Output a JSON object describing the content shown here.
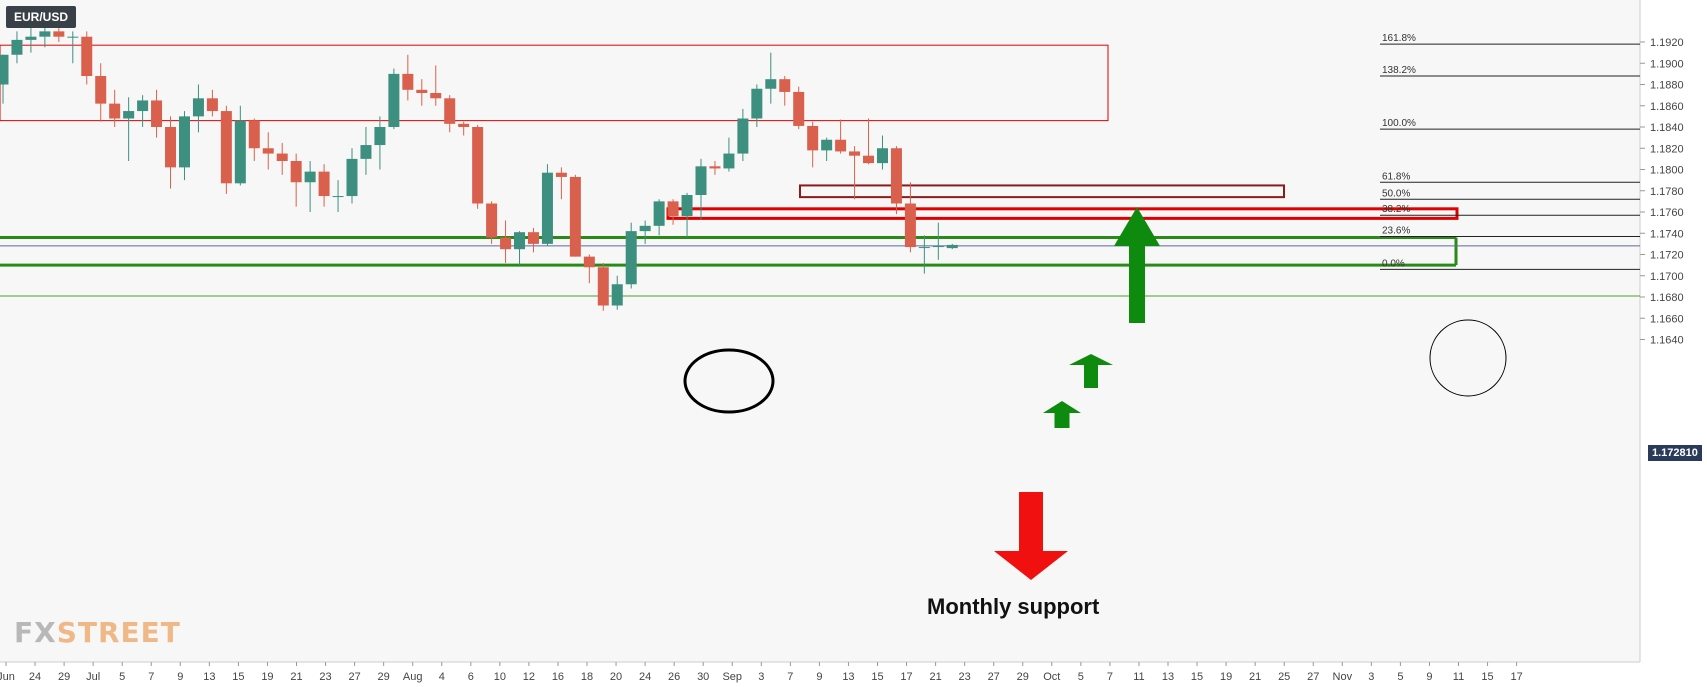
{
  "symbol": "EUR/USD",
  "current_price": "1.172810",
  "annotation": "Monthly support",
  "logo": {
    "left": "FX",
    "right": "STREET"
  },
  "colors": {
    "up": "#3d8f7f",
    "down": "#d9604d",
    "green_zone": "#2a8a18",
    "red_zone": "#e00000",
    "dark_red_zone": "#8b1a1a",
    "arrow_up": "#0e8a0e",
    "arrow_down": "#f01010"
  },
  "chart_data": {
    "type": "candlestick",
    "ylim": [
      1.1625,
      1.1938
    ],
    "y_ticks": [
      "1.1920",
      "1.1900",
      "1.1880",
      "1.1860",
      "1.1840",
      "1.1820",
      "1.1800",
      "1.1780",
      "1.1760",
      "1.1740",
      "1.1720",
      "1.1700",
      "1.1680",
      "1.1660",
      "1.1640"
    ],
    "x_ticks": [
      "Jun",
      "24",
      "29",
      "Jul",
      "5",
      "7",
      "9",
      "13",
      "15",
      "19",
      "21",
      "23",
      "27",
      "29",
      "Aug",
      "4",
      "6",
      "10",
      "12",
      "16",
      "18",
      "20",
      "24",
      "26",
      "30",
      "Sep",
      "3",
      "7",
      "9",
      "13",
      "15",
      "17",
      "21",
      "23",
      "27",
      "29",
      "Oct",
      "5",
      "7",
      "11",
      "13",
      "15",
      "19",
      "21",
      "25",
      "27",
      "Nov",
      "3",
      "5",
      "9",
      "11",
      "15",
      "17"
    ],
    "candles": [
      [
        1.188,
        1.1908,
        1.1862,
        1.1908
      ],
      [
        1.1908,
        1.193,
        1.19,
        1.1922
      ],
      [
        1.1922,
        1.1935,
        1.191,
        1.1925
      ],
      [
        1.1925,
        1.1935,
        1.1915,
        1.193
      ],
      [
        1.193,
        1.1935,
        1.192,
        1.1925
      ],
      [
        1.1925,
        1.193,
        1.19,
        1.1925
      ],
      [
        1.1925,
        1.193,
        1.188,
        1.1888
      ],
      [
        1.1888,
        1.19,
        1.1845,
        1.1862
      ],
      [
        1.1862,
        1.1875,
        1.184,
        1.1848
      ],
      [
        1.1848,
        1.1868,
        1.1808,
        1.1855
      ],
      [
        1.1855,
        1.187,
        1.184,
        1.1865
      ],
      [
        1.1865,
        1.1875,
        1.183,
        1.184
      ],
      [
        1.184,
        1.185,
        1.1782,
        1.1802
      ],
      [
        1.1802,
        1.1855,
        1.179,
        1.185
      ],
      [
        1.185,
        1.188,
        1.1835,
        1.1867
      ],
      [
        1.1867,
        1.1875,
        1.185,
        1.1855
      ],
      [
        1.1855,
        1.186,
        1.1777,
        1.1787
      ],
      [
        1.1787,
        1.186,
        1.1785,
        1.1846
      ],
      [
        1.1846,
        1.1848,
        1.1808,
        1.182
      ],
      [
        1.182,
        1.1835,
        1.18,
        1.1815
      ],
      [
        1.1815,
        1.1825,
        1.1795,
        1.1808
      ],
      [
        1.1808,
        1.1815,
        1.1765,
        1.1788
      ],
      [
        1.1788,
        1.1808,
        1.176,
        1.1798
      ],
      [
        1.1798,
        1.1805,
        1.1765,
        1.1775
      ],
      [
        1.1775,
        1.179,
        1.176,
        1.1775
      ],
      [
        1.1775,
        1.182,
        1.1768,
        1.181
      ],
      [
        1.181,
        1.184,
        1.1795,
        1.1823
      ],
      [
        1.1823,
        1.185,
        1.18,
        1.184
      ],
      [
        1.184,
        1.1895,
        1.1838,
        1.189
      ],
      [
        1.189,
        1.1908,
        1.1865,
        1.1875
      ],
      [
        1.1875,
        1.1885,
        1.186,
        1.1872
      ],
      [
        1.1872,
        1.1898,
        1.186,
        1.1867
      ],
      [
        1.1867,
        1.187,
        1.1835,
        1.1843
      ],
      [
        1.1843,
        1.1845,
        1.1832,
        1.184
      ],
      [
        1.184,
        1.1842,
        1.1763,
        1.1768
      ],
      [
        1.1768,
        1.177,
        1.173,
        1.1736
      ],
      [
        1.1736,
        1.1752,
        1.1712,
        1.1725
      ],
      [
        1.1725,
        1.1742,
        1.171,
        1.1741
      ],
      [
        1.1741,
        1.1745,
        1.1722,
        1.173
      ],
      [
        1.173,
        1.1805,
        1.1728,
        1.1797
      ],
      [
        1.1797,
        1.1802,
        1.1772,
        1.1793
      ],
      [
        1.1793,
        1.1795,
        1.1718,
        1.1718
      ],
      [
        1.1718,
        1.172,
        1.1693,
        1.1708
      ],
      [
        1.1708,
        1.1712,
        1.1667,
        1.1672
      ],
      [
        1.1672,
        1.17,
        1.1668,
        1.1692
      ],
      [
        1.1692,
        1.175,
        1.1688,
        1.1742
      ],
      [
        1.1742,
        1.1752,
        1.173,
        1.1747
      ],
      [
        1.1747,
        1.1772,
        1.1738,
        1.177
      ],
      [
        1.177,
        1.1772,
        1.1748,
        1.1756
      ],
      [
        1.1756,
        1.1778,
        1.1736,
        1.1776
      ],
      [
        1.1776,
        1.181,
        1.1753,
        1.1803
      ],
      [
        1.1803,
        1.1808,
        1.1795,
        1.1801
      ],
      [
        1.1801,
        1.183,
        1.1798,
        1.1815
      ],
      [
        1.1815,
        1.1857,
        1.1808,
        1.1848
      ],
      [
        1.1848,
        1.188,
        1.184,
        1.1876
      ],
      [
        1.1876,
        1.191,
        1.1862,
        1.1885
      ],
      [
        1.1885,
        1.1888,
        1.186,
        1.1873
      ],
      [
        1.1873,
        1.1878,
        1.1838,
        1.1841
      ],
      [
        1.1841,
        1.1845,
        1.1802,
        1.1818
      ],
      [
        1.1818,
        1.183,
        1.1808,
        1.1828
      ],
      [
        1.1828,
        1.1847,
        1.1815,
        1.1817
      ],
      [
        1.1817,
        1.1822,
        1.1772,
        1.1813
      ],
      [
        1.1813,
        1.1848,
        1.1805,
        1.1806
      ],
      [
        1.1806,
        1.1832,
        1.18,
        1.182
      ],
      [
        1.182,
        1.1822,
        1.1758,
        1.1768
      ],
      [
        1.1768,
        1.1788,
        1.1722,
        1.1727
      ],
      [
        1.1727,
        1.1738,
        1.1702,
        1.1727
      ],
      [
        1.1727,
        1.175,
        1.1715,
        1.1728
      ],
      [
        1.1726,
        1.173,
        1.1725,
        1.1729
      ]
    ],
    "fibonacci": [
      {
        "label": "161.8%",
        "price": 1.1918
      },
      {
        "label": "138.2%",
        "price": 1.1888
      },
      {
        "label": "100.0%",
        "price": 1.1838
      },
      {
        "label": "61.8%",
        "price": 1.1788
      },
      {
        "label": "50.0%",
        "price": 1.1772
      },
      {
        "label": "38.2%",
        "price": 1.1757
      },
      {
        "label": "23.6%",
        "price": 1.1737
      },
      {
        "label": "0.0%",
        "price": 1.1706
      }
    ],
    "zones": [
      {
        "kind": "resistance",
        "top": 1.1917,
        "bottom": 1.1846
      },
      {
        "kind": "resistance-2",
        "top": 1.1785,
        "bottom": 1.1774
      },
      {
        "kind": "support-red",
        "top": 1.1763,
        "bottom": 1.1754
      },
      {
        "kind": "monthly-support",
        "top": 1.1736,
        "bottom": 1.171
      }
    ],
    "levels": [
      {
        "kind": "current",
        "price": 1.17281
      },
      {
        "kind": "support-line",
        "price": 1.1681
      }
    ],
    "grid": false
  }
}
